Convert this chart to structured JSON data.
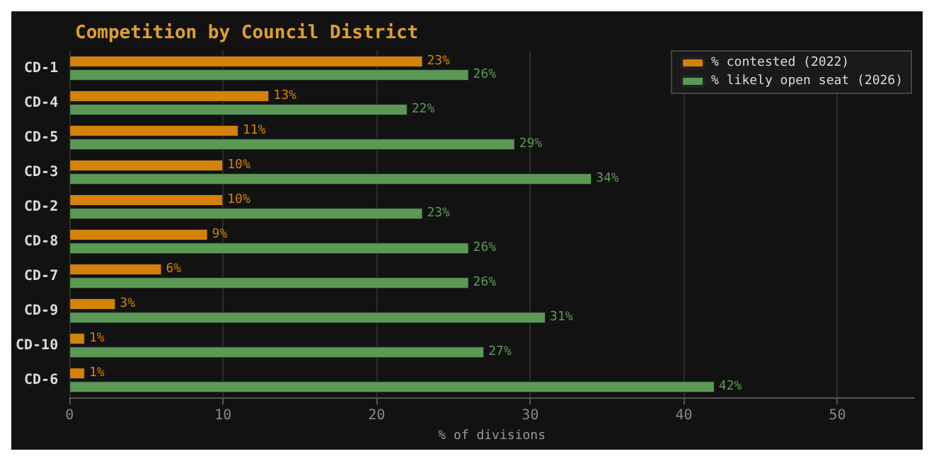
{
  "chart_data": {
    "type": "bar",
    "orientation": "horizontal",
    "title": "Competition by Council District",
    "xlabel": "% of divisions",
    "categories": [
      "CD-1",
      "CD-4",
      "CD-5",
      "CD-3",
      "CD-2",
      "CD-8",
      "CD-7",
      "CD-9",
      "CD-10",
      "CD-6"
    ],
    "series": [
      {
        "name": "% contested (2022)",
        "color": "#d4820a",
        "values": [
          23,
          13,
          11,
          10,
          10,
          9,
          6,
          3,
          1,
          1
        ],
        "value_labels": [
          "23%",
          "13%",
          "11%",
          "10%",
          "10%",
          "9%",
          "6%",
          "3%",
          "1%",
          "1%"
        ]
      },
      {
        "name": "% likely open seat (2026)",
        "color": "#5a9a55",
        "values": [
          26,
          22,
          29,
          34,
          23,
          26,
          26,
          31,
          27,
          42
        ],
        "value_labels": [
          "26%",
          "22%",
          "29%",
          "34%",
          "23%",
          "26%",
          "26%",
          "31%",
          "27%",
          "42%"
        ]
      }
    ],
    "xlim": [
      0,
      55
    ],
    "xticks": [
      0,
      10,
      20,
      30,
      40,
      50
    ],
    "grid": "x",
    "legend": "top right"
  }
}
